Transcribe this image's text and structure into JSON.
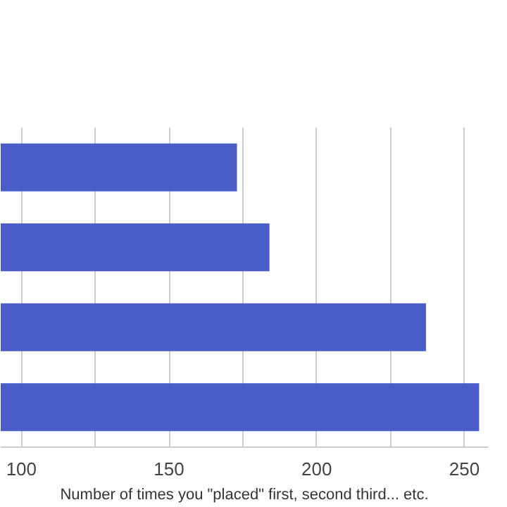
{
  "chart_data": {
    "type": "bar",
    "orientation": "horizontal",
    "categories": [
      null,
      null,
      null,
      null
    ],
    "values": [
      173,
      184,
      237,
      255
    ],
    "color": "#4a5cc8",
    "xlabel": "Number of times you \"placed\" first, second third... etc.",
    "xlim": [
      93,
      258
    ],
    "xticks": [
      100,
      {
        "value": 125,
        "label": null
      },
      150,
      {
        "value": 175,
        "label": null
      },
      200,
      {
        "value": 225,
        "label": null
      },
      250
    ],
    "grid": "x"
  }
}
